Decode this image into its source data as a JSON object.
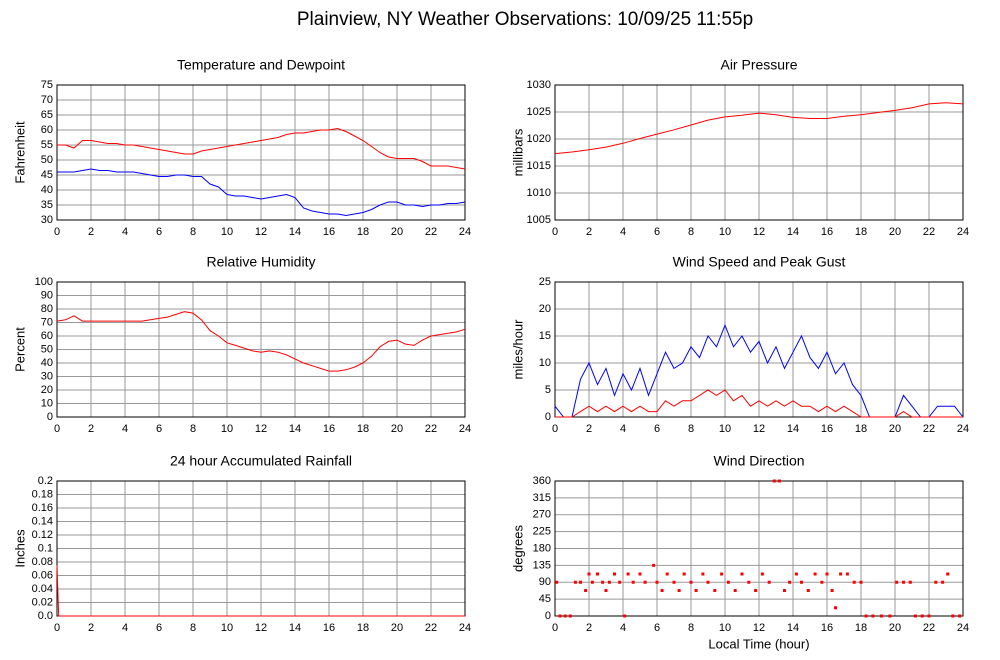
{
  "title": "Plainview, NY Weather Observations: 10/09/25 11:55p",
  "chart_data": [
    {
      "type": "line",
      "title": "Temperature and Dewpoint",
      "ylabel": "Fahrenheit",
      "grid": true,
      "xlim": [
        0,
        24
      ],
      "xticks": [
        0,
        2,
        4,
        6,
        8,
        10,
        12,
        14,
        16,
        18,
        20,
        22,
        24
      ],
      "ylim": [
        30,
        75
      ],
      "yticks": [
        30,
        35,
        40,
        45,
        50,
        55,
        60,
        65,
        70,
        75
      ],
      "x": [
        0,
        0.5,
        1,
        1.5,
        2,
        2.5,
        3,
        3.5,
        4,
        4.5,
        5,
        5.5,
        6,
        6.5,
        7,
        7.5,
        8,
        8.5,
        9,
        9.5,
        10,
        10.5,
        11,
        11.5,
        12,
        12.5,
        13,
        13.5,
        14,
        14.5,
        15,
        15.5,
        16,
        16.5,
        17,
        17.5,
        18,
        18.5,
        19,
        19.5,
        20,
        20.5,
        21,
        21.5,
        22,
        22.5,
        23,
        23.5,
        24
      ],
      "series": [
        {
          "color": "#ff0000",
          "values": [
            55,
            55,
            54,
            56.5,
            56.5,
            56,
            55.5,
            55.5,
            55,
            55,
            54.5,
            54,
            53.5,
            53,
            52.5,
            52,
            52,
            53,
            53.5,
            54,
            54.5,
            55,
            55.5,
            56,
            56.5,
            57,
            57.5,
            58.5,
            59,
            59,
            59.5,
            60,
            60,
            60.5,
            59.5,
            58,
            56.5,
            54.5,
            52.5,
            51,
            50.5,
            50.5,
            50.5,
            49.5,
            48,
            48,
            48,
            47.5,
            47
          ]
        },
        {
          "color": "#0000ff",
          "values": [
            46,
            46,
            46,
            46.5,
            47,
            46.5,
            46.5,
            46,
            46,
            46,
            45.5,
            45,
            44.5,
            44.5,
            45,
            45,
            44.5,
            44.5,
            42,
            41,
            38.5,
            38,
            38,
            37.5,
            37,
            37.5,
            38,
            38.5,
            37.5,
            34,
            33,
            32.5,
            32,
            32,
            31.5,
            32,
            32.5,
            33.5,
            35,
            36,
            36,
            35,
            35,
            34.5,
            35,
            35,
            35.5,
            35.5,
            36
          ]
        }
      ]
    },
    {
      "type": "line",
      "title": "Air Pressure",
      "ylabel": "millibars",
      "grid": true,
      "xlim": [
        0,
        24
      ],
      "xticks": [
        0,
        2,
        4,
        6,
        8,
        10,
        12,
        14,
        16,
        18,
        20,
        22,
        24
      ],
      "ylim": [
        1005,
        1030
      ],
      "yticks": [
        1005,
        1010,
        1015,
        1020,
        1025,
        1030
      ],
      "x": [
        0,
        1,
        2,
        3,
        4,
        5,
        6,
        7,
        8,
        9,
        10,
        11,
        12,
        13,
        14,
        15,
        16,
        17,
        18,
        19,
        20,
        21,
        22,
        23,
        24
      ],
      "series": [
        {
          "color": "#ff0000",
          "values": [
            1017.3,
            1017.6,
            1018,
            1018.5,
            1019.2,
            1020.1,
            1020.9,
            1021.7,
            1022.6,
            1023.5,
            1024.1,
            1024.4,
            1024.8,
            1024.5,
            1024,
            1023.8,
            1023.8,
            1024.2,
            1024.5,
            1024.9,
            1025.3,
            1025.8,
            1026.5,
            1026.7,
            1026.5
          ]
        }
      ]
    },
    {
      "type": "line",
      "title": "Relative Humidity",
      "ylabel": "Percent",
      "grid": true,
      "xlim": [
        0,
        24
      ],
      "xticks": [
        0,
        2,
        4,
        6,
        8,
        10,
        12,
        14,
        16,
        18,
        20,
        22,
        24
      ],
      "ylim": [
        0,
        100
      ],
      "yticks": [
        0,
        10,
        20,
        30,
        40,
        50,
        60,
        70,
        80,
        90,
        100
      ],
      "x": [
        0,
        0.5,
        1,
        1.5,
        2,
        2.5,
        3,
        3.5,
        4,
        4.5,
        5,
        5.5,
        6,
        6.5,
        7,
        7.5,
        8,
        8.5,
        9,
        9.5,
        10,
        10.5,
        11,
        11.5,
        12,
        12.5,
        13,
        13.5,
        14,
        14.5,
        15,
        15.5,
        16,
        16.5,
        17,
        17.5,
        18,
        18.5,
        19,
        19.5,
        20,
        20.5,
        21,
        21.5,
        22,
        22.5,
        23,
        23.5,
        24
      ],
      "series": [
        {
          "color": "#ff0000",
          "values": [
            71,
            72,
            75,
            71,
            71,
            71,
            71,
            71,
            71,
            71,
            71,
            72,
            73,
            74,
            76,
            78,
            77,
            72,
            64,
            60,
            55,
            53,
            51,
            49,
            48,
            49,
            48,
            46,
            43,
            40,
            38,
            36,
            34,
            34,
            35,
            37,
            40,
            45,
            52,
            56,
            57,
            54,
            53,
            57,
            60,
            61,
            62,
            63,
            65
          ]
        }
      ]
    },
    {
      "type": "line",
      "title": "Wind Speed and Peak Gust",
      "ylabel": "miles/hour",
      "grid": true,
      "xlim": [
        0,
        24
      ],
      "xticks": [
        0,
        2,
        4,
        6,
        8,
        10,
        12,
        14,
        16,
        18,
        20,
        22,
        24
      ],
      "ylim": [
        0,
        25
      ],
      "yticks": [
        0,
        5,
        10,
        15,
        20,
        25
      ],
      "x": [
        0,
        0.5,
        1,
        1.5,
        2,
        2.5,
        3,
        3.5,
        4,
        4.5,
        5,
        5.5,
        6,
        6.5,
        7,
        7.5,
        8,
        8.5,
        9,
        9.5,
        10,
        10.5,
        11,
        11.5,
        12,
        12.5,
        13,
        13.5,
        14,
        14.5,
        15,
        15.5,
        16,
        16.5,
        17,
        17.5,
        18,
        18.5,
        19,
        19.5,
        20,
        20.5,
        21,
        21.5,
        22,
        22.5,
        23,
        23.5,
        24
      ],
      "series": [
        {
          "color": "#0000ff",
          "values": [
            2,
            0,
            0,
            7,
            10,
            6,
            9,
            4,
            8,
            5,
            9,
            4,
            8,
            12,
            9,
            10,
            13,
            11,
            15,
            13,
            17,
            13,
            15,
            12,
            14,
            10,
            13,
            9,
            12,
            15,
            11,
            9,
            12,
            8,
            10,
            6,
            4,
            0,
            0,
            0,
            0,
            4,
            2,
            0,
            0,
            2,
            2,
            2,
            0
          ]
        },
        {
          "color": "#ff0000",
          "values": [
            0,
            0,
            0,
            1,
            2,
            1,
            2,
            1,
            2,
            1,
            2,
            1,
            1,
            3,
            2,
            3,
            3,
            4,
            5,
            4,
            5,
            3,
            4,
            2,
            3,
            2,
            3,
            2,
            3,
            2,
            2,
            1,
            2,
            1,
            2,
            1,
            0,
            0,
            0,
            0,
            0,
            1,
            0,
            0,
            0,
            0,
            0,
            0,
            0
          ]
        }
      ]
    },
    {
      "type": "line",
      "title": "24 hour Accumulated Rainfall",
      "ylabel": "Inches",
      "grid": true,
      "xlim": [
        0,
        24
      ],
      "xticks": [
        0,
        2,
        4,
        6,
        8,
        10,
        12,
        14,
        16,
        18,
        20,
        22,
        24
      ],
      "ylim": [
        0,
        0.2
      ],
      "yticks": [
        {
          "value": 0,
          "label": "0.0"
        },
        0.02,
        0.04,
        0.06,
        0.08,
        0.1,
        0.12,
        0.14,
        0.16,
        0.18,
        0.2
      ],
      "x": [
        0,
        0.1,
        24
      ],
      "series": [
        {
          "color": "#ff0000",
          "values": [
            0.075,
            0,
            0
          ]
        }
      ]
    },
    {
      "type": "scatter",
      "title": "Wind Direction",
      "ylabel": "degrees",
      "xlabel": "Local Time (hour)",
      "grid": true,
      "xlim": [
        0,
        24
      ],
      "xticks": [
        0,
        2,
        4,
        6,
        8,
        10,
        12,
        14,
        16,
        18,
        20,
        22,
        24
      ],
      "ylim": [
        0,
        360
      ],
      "yticks": [
        0,
        45,
        90,
        135,
        180,
        225,
        270,
        315,
        360
      ],
      "x": [
        0.1,
        0.3,
        0.6,
        0.9,
        1.2,
        1.5,
        1.8,
        2,
        2.2,
        2.5,
        2.8,
        3,
        3.2,
        3.5,
        3.8,
        4.1,
        4.3,
        4.6,
        5,
        5.3,
        5.8,
        6,
        6.3,
        6.6,
        7,
        7.3,
        7.6,
        8,
        8.3,
        8.7,
        9,
        9.4,
        9.8,
        10.2,
        10.6,
        11,
        11.4,
        11.8,
        12.2,
        12.6,
        12.9,
        13.2,
        13.5,
        13.8,
        14.2,
        14.5,
        14.9,
        15.3,
        15.7,
        16,
        16.3,
        16.5,
        16.8,
        17.2,
        17.6,
        18,
        18.3,
        18.7,
        19.2,
        19.7,
        20.1,
        20.5,
        20.9,
        21.2,
        21.6,
        22,
        22.4,
        22.8,
        23.1,
        23.4,
        23.8
      ],
      "series": [
        {
          "color": "#ff0000",
          "values": [
            90,
            0,
            0,
            0,
            90,
            90,
            68,
            112,
            90,
            112,
            90,
            68,
            90,
            112,
            90,
            0,
            112,
            90,
            112,
            90,
            135,
            90,
            68,
            112,
            90,
            68,
            112,
            90,
            68,
            112,
            90,
            68,
            112,
            90,
            68,
            112,
            90,
            68,
            112,
            90,
            360,
            360,
            68,
            90,
            112,
            90,
            68,
            112,
            90,
            112,
            68,
            22,
            112,
            112,
            90,
            90,
            0,
            0,
            0,
            0,
            90,
            90,
            90,
            0,
            0,
            0,
            90,
            90,
            112,
            0,
            0
          ]
        }
      ]
    }
  ]
}
